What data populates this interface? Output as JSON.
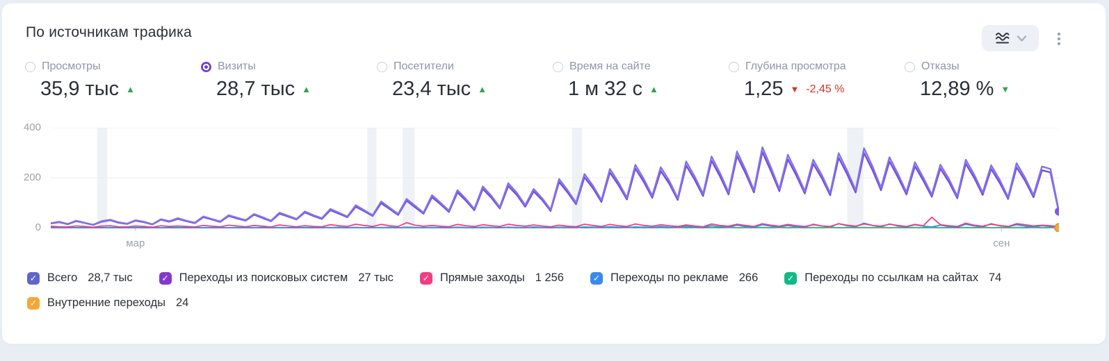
{
  "header": {
    "title": "По источникам трафика"
  },
  "glyphs": {
    "up": "▲",
    "down": "▼",
    "check": "✓"
  },
  "accent": {
    "radio_selected": "#6f42d6"
  },
  "metrics": [
    {
      "label": "Просмотры",
      "value": "35,9 тыс",
      "trend": "up",
      "trend_color": "#2fa34a",
      "selected": false
    },
    {
      "label": "Визиты",
      "value": "28,7 тыс",
      "trend": "up",
      "trend_color": "#2fa34a",
      "selected": true
    },
    {
      "label": "Посетители",
      "value": "23,4 тыс",
      "trend": "up",
      "trend_color": "#2fa34a",
      "selected": false
    },
    {
      "label": "Время на сайте",
      "value": "1 м 32 с",
      "trend": "up",
      "trend_color": "#2fa34a",
      "selected": false
    },
    {
      "label": "Глубина просмотра",
      "value": "1,25",
      "trend": "down",
      "trend_color": "#d93025",
      "delta": "-2,45 %",
      "delta_color": "#d93025",
      "selected": false
    },
    {
      "label": "Отказы",
      "value": "12,89 %",
      "trend": "down",
      "trend_color": "#2fa34a",
      "selected": false
    }
  ],
  "chart_data": {
    "type": "line",
    "ylim": [
      0,
      400
    ],
    "y_ticks": [
      0,
      200,
      400
    ],
    "x_tick_labels": [
      {
        "label": "мар",
        "frac": 0.084
      },
      {
        "label": "сен",
        "frac": 0.943
      }
    ],
    "highlight_bands": [
      {
        "frac": 0.046,
        "w": 0.01
      },
      {
        "frac": 0.314,
        "w": 0.009
      },
      {
        "frac": 0.349,
        "w": 0.012
      },
      {
        "frac": 0.517,
        "w": 0.01
      },
      {
        "frac": 0.79,
        "w": 0.016
      }
    ],
    "colors": {
      "band": "#eef1f6",
      "grid": "#ececf1",
      "axis_line": "#c3c7cf",
      "tick_text": "#9aa1ad"
    },
    "series": [
      {
        "name": "Всего",
        "value_label": "28,7 тыс",
        "line_color": "#7e74ea",
        "box_color": "#6065cb",
        "end_dot": true,
        "dot_color": "#7a5ce8",
        "values": [
          18,
          24,
          15,
          28,
          20,
          12,
          26,
          32,
          22,
          16,
          30,
          24,
          14,
          34,
          26,
          38,
          28,
          20,
          45,
          35,
          25,
          50,
          40,
          30,
          55,
          42,
          28,
          60,
          48,
          35,
          65,
          50,
          38,
          75,
          60,
          45,
          90,
          70,
          50,
          105,
          80,
          55,
          115,
          88,
          60,
          130,
          100,
          68,
          150,
          115,
          75,
          165,
          128,
          82,
          178,
          140,
          90,
          155,
          118,
          72,
          195,
          150,
          100,
          215,
          168,
          110,
          235,
          182,
          120,
          252,
          195,
          128,
          242,
          188,
          118,
          265,
          205,
          135,
          285,
          218,
          142,
          305,
          232,
          150,
          322,
          242,
          155,
          292,
          222,
          146,
          272,
          212,
          138,
          298,
          228,
          150,
          318,
          245,
          160,
          282,
          215,
          142,
          262,
          200,
          132,
          252,
          196,
          126,
          272,
          212,
          140,
          250,
          192,
          122,
          258,
          200,
          130,
          245,
          235,
          65
        ]
      },
      {
        "name": "Переходы из поисковых систем",
        "value_label": "27 тыс",
        "line_color": "#7a4bdb",
        "box_color": "#8439cb",
        "end_dot": false,
        "values": [
          17,
          22,
          14,
          26,
          19,
          11,
          24,
          30,
          20,
          15,
          28,
          22,
          13,
          32,
          24,
          35,
          26,
          18,
          42,
          33,
          23,
          47,
          37,
          28,
          52,
          39,
          26,
          56,
          45,
          33,
          61,
          47,
          35,
          70,
          56,
          42,
          84,
          66,
          47,
          98,
          75,
          51,
          108,
          82,
          56,
          122,
          94,
          63,
          141,
          108,
          70,
          155,
          120,
          77,
          167,
          131,
          84,
          145,
          111,
          67,
          183,
          141,
          94,
          202,
          158,
          103,
          221,
          171,
          113,
          237,
          183,
          120,
          227,
          176,
          111,
          249,
          192,
          127,
          268,
          205,
          133,
          287,
          218,
          141,
          303,
          227,
          146,
          274,
          209,
          137,
          256,
          199,
          130,
          280,
          214,
          141,
          299,
          230,
          150,
          265,
          202,
          133,
          246,
          188,
          124,
          237,
          184,
          118,
          256,
          199,
          131,
          235,
          180,
          115,
          242,
          188,
          122,
          230,
          221,
          61
        ]
      },
      {
        "name": "Прямые заходы",
        "value_label": "1 256",
        "line_color": "#f03e82",
        "box_color": "#f03e82",
        "end_dot": false,
        "values": [
          6,
          4,
          3,
          7,
          5,
          2,
          6,
          8,
          4,
          3,
          7,
          5,
          2,
          8,
          5,
          7,
          5,
          3,
          9,
          6,
          4,
          10,
          7,
          4,
          9,
          6,
          3,
          11,
          7,
          4,
          8,
          5,
          4,
          12,
          8,
          5,
          14,
          9,
          5,
          13,
          8,
          5,
          20,
          10,
          6,
          9,
          6,
          4,
          13,
          8,
          5,
          12,
          8,
          5,
          14,
          9,
          6,
          11,
          7,
          4,
          10,
          6,
          4,
          14,
          9,
          5,
          13,
          8,
          5,
          15,
          9,
          6,
          12,
          8,
          5,
          11,
          7,
          4,
          15,
          9,
          6,
          14,
          9,
          5,
          16,
          10,
          6,
          13,
          8,
          5,
          12,
          7,
          5,
          16,
          10,
          6,
          15,
          9,
          6,
          14,
          9,
          5,
          13,
          8,
          42,
          12,
          8,
          5,
          18,
          10,
          6,
          14,
          9,
          5,
          16,
          12,
          7,
          10,
          8,
          5
        ]
      },
      {
        "name": "Переходы по рекламе",
        "value_label": "266",
        "line_color": "#3a8be8",
        "box_color": "#3a8be8",
        "end_dot": false,
        "values": [
          0,
          0,
          0,
          0,
          0,
          0,
          0,
          0,
          0,
          0,
          0,
          0,
          0,
          0,
          0,
          0,
          0,
          0,
          0,
          0,
          0,
          0,
          0,
          0,
          0,
          0,
          0,
          0,
          0,
          0,
          0,
          0,
          0,
          1,
          0,
          0,
          1,
          0,
          0,
          1,
          0,
          0,
          2,
          1,
          0,
          1,
          0,
          0,
          2,
          1,
          0,
          2,
          1,
          0,
          2,
          1,
          0,
          3,
          1,
          0,
          2,
          1,
          0,
          3,
          2,
          1,
          4,
          2,
          1,
          3,
          2,
          1,
          5,
          2,
          1,
          6,
          3,
          1,
          8,
          4,
          2,
          10,
          5,
          2,
          12,
          6,
          3,
          9,
          4,
          2,
          14,
          7,
          3,
          16,
          8,
          4,
          18,
          9,
          4,
          15,
          7,
          3,
          12,
          6,
          3,
          10,
          5,
          2,
          14,
          7,
          3,
          16,
          8,
          4,
          12,
          6,
          3,
          8,
          5,
          2
        ]
      },
      {
        "name": "Переходы по ссылкам на сайтах",
        "value_label": "74",
        "line_color": "#23b68c",
        "box_color": "#12b886",
        "end_dot": false,
        "values": [
          1,
          0,
          1,
          0,
          0,
          1,
          0,
          1,
          0,
          0,
          1,
          0,
          1,
          0,
          0,
          1,
          0,
          1,
          0,
          0,
          1,
          0,
          1,
          0,
          0,
          1,
          0,
          1,
          0,
          0,
          1,
          0,
          1,
          0,
          2,
          0,
          1,
          0,
          1,
          0,
          2,
          0,
          1,
          0,
          1,
          0,
          1,
          0,
          2,
          0,
          1,
          0,
          1,
          0,
          2,
          0,
          1,
          0,
          1,
          0,
          1,
          0,
          2,
          0,
          1,
          0,
          1,
          0,
          2,
          0,
          1,
          0,
          1,
          0,
          2,
          0,
          1,
          0,
          1,
          0,
          2,
          0,
          1,
          0,
          1,
          0,
          2,
          0,
          1,
          0,
          1,
          0,
          2,
          0,
          1,
          0,
          1,
          0,
          2,
          0,
          1,
          0,
          1,
          0,
          2,
          0,
          1,
          0,
          1,
          0,
          2,
          0,
          1,
          0,
          1,
          0,
          2,
          0,
          1,
          1
        ]
      },
      {
        "name": "Внутренние переходы",
        "value_label": "24",
        "line_color": "#f3a73e",
        "box_color": "#f5a63b",
        "end_dot": true,
        "dot_color": "#f2a73d",
        "dot_stroke": "#dd9226",
        "values": [
          0,
          0,
          0,
          0,
          0,
          0,
          0,
          0,
          0,
          0,
          0,
          0,
          0,
          0,
          0,
          0,
          0,
          0,
          0,
          0,
          0,
          0,
          0,
          0,
          0,
          0,
          0,
          0,
          0,
          0,
          0,
          0,
          0,
          0,
          0,
          0,
          0,
          0,
          0,
          0,
          0,
          0,
          0,
          0,
          0,
          0,
          0,
          0,
          0,
          0,
          0,
          0,
          0,
          0,
          0,
          0,
          0,
          0,
          0,
          0,
          0,
          0,
          0,
          0,
          0,
          0,
          0,
          0,
          0,
          0,
          0,
          0,
          0,
          0,
          0,
          0,
          0,
          0,
          0,
          0,
          0,
          0,
          0,
          0,
          0,
          0,
          0,
          0,
          0,
          0,
          0,
          0,
          0,
          0,
          0,
          0,
          0,
          0,
          0,
          0,
          0,
          0,
          0,
          0,
          0,
          0,
          0,
          0,
          0,
          0,
          0,
          0,
          0,
          0,
          0,
          0,
          0,
          0,
          0,
          0
        ]
      }
    ]
  }
}
